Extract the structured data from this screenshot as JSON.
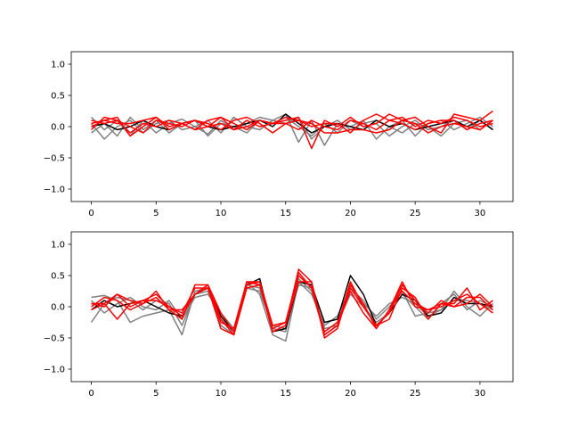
{
  "chart_data": [
    {
      "type": "line",
      "title": "",
      "xlabel": "",
      "ylabel": "",
      "xlim": [
        -1.55,
        32.55
      ],
      "ylim": [
        -1.2,
        1.2
      ],
      "xticks": [
        0,
        5,
        10,
        15,
        20,
        25,
        30
      ],
      "xtick_labels": [
        "0",
        "5",
        "10",
        "15",
        "20",
        "25",
        "30"
      ],
      "yticks": [
        -1.0,
        -0.5,
        0.0,
        0.5,
        1.0
      ],
      "ytick_labels": [
        "−1.0",
        "−0.5",
        "0.0",
        "0.5",
        "1.0"
      ],
      "x": [
        0,
        1,
        2,
        3,
        4,
        5,
        6,
        7,
        8,
        9,
        10,
        11,
        12,
        13,
        14,
        15,
        16,
        17,
        18,
        19,
        20,
        21,
        22,
        23,
        24,
        25,
        26,
        27,
        28,
        29,
        30,
        31
      ],
      "series": [
        {
          "color": "#808080",
          "values": [
            0.15,
            -0.05,
            0.1,
            -0.15,
            0.1,
            -0.1,
            0.05,
            0.12,
            0.0,
            -0.12,
            0.1,
            -0.05,
            0.05,
            0.15,
            0.1,
            0.2,
            -0.25,
            0.1,
            -0.3,
            0.05,
            0.0,
            0.1,
            -0.2,
            0.0,
            0.1,
            -0.15,
            0.05,
            0.1,
            -0.05,
            0.05,
            0.15,
            0.0
          ]
        },
        {
          "color": "#808080",
          "values": [
            -0.1,
            0.05,
            -0.15,
            0.15,
            -0.05,
            0.1,
            -0.1,
            0.05,
            0.1,
            -0.15,
            0.05,
            0.0,
            -0.1,
            0.1,
            0.05,
            0.15,
            0.0,
            -0.15,
            0.05,
            -0.1,
            0.1,
            0.0,
            0.05,
            -0.15,
            0.0,
            0.1,
            -0.05,
            0.0,
            0.1,
            -0.05,
            0.1,
            -0.05
          ]
        },
        {
          "color": "#808080",
          "values": [
            0.05,
            -0.2,
            0.0,
            0.1,
            -0.1,
            0.05,
            0.1,
            -0.05,
            0.0,
            0.1,
            -0.1,
            0.15,
            0.0,
            -0.05,
            0.1,
            0.05,
            0.15,
            -0.2,
            0.0,
            0.1,
            -0.05,
            0.05,
            0.1,
            0.0,
            -0.1,
            0.05,
            0.0,
            -0.15,
            0.05,
            0.1,
            -0.05,
            0.1
          ]
        },
        {
          "color": "#000000",
          "values": [
            0.0,
            0.05,
            -0.05,
            0.0,
            0.1,
            0.0,
            -0.05,
            0.05,
            0.1,
            0.0,
            -0.05,
            0.0,
            0.05,
            0.1,
            0.0,
            0.2,
            0.05,
            -0.1,
            0.0,
            0.05,
            0.0,
            -0.05,
            0.1,
            0.0,
            0.05,
            -0.05,
            0.0,
            0.05,
            0.1,
            0.0,
            0.1,
            -0.05
          ]
        },
        {
          "color": "#ff0000",
          "values": [
            0.05,
            0.1,
            0.15,
            -0.15,
            0.0,
            0.15,
            -0.05,
            0.05,
            0.1,
            0.0,
            0.15,
            0.05,
            -0.05,
            0.1,
            0.05,
            0.1,
            0.15,
            -0.35,
            0.1,
            0.0,
            0.15,
            0.0,
            0.05,
            0.2,
            0.1,
            0.15,
            0.0,
            -0.1,
            0.2,
            0.15,
            0.1,
            0.25
          ]
        },
        {
          "color": "#ff0000",
          "values": [
            -0.05,
            0.15,
            0.1,
            0.0,
            -0.1,
            0.1,
            0.05,
            0.0,
            0.1,
            0.05,
            -0.05,
            0.1,
            0.15,
            0.05,
            -0.1,
            0.05,
            -0.05,
            0.1,
            0.0,
            -0.05,
            0.1,
            0.05,
            -0.05,
            0.1,
            0.15,
            0.0,
            0.1,
            0.05,
            0.15,
            0.1,
            0.0,
            0.05
          ]
        },
        {
          "color": "#ff0000",
          "values": [
            0.1,
            0.05,
            0.1,
            -0.1,
            0.05,
            0.0,
            0.1,
            0.05,
            -0.05,
            0.0,
            0.05,
            -0.05,
            0.1,
            0.0,
            0.05,
            0.05,
            0.1,
            0.05,
            -0.1,
            -0.1,
            -0.05,
            -0.05,
            -0.1,
            -0.05,
            0.1,
            0.05,
            -0.1,
            0.0,
            0.05,
            0.0,
            -0.05,
            0.1
          ]
        },
        {
          "color": "#ff0000",
          "values": [
            0.0,
            0.1,
            0.05,
            0.05,
            0.1,
            0.15,
            0.0,
            0.05,
            -0.05,
            0.1,
            0.15,
            -0.05,
            0.0,
            0.1,
            0.05,
            0.15,
            0.1,
            0.0,
            0.05,
            0.05,
            -0.1,
            0.1,
            0.2,
            0.1,
            0.05,
            -0.05,
            0.05,
            0.1,
            0.1,
            -0.05,
            0.05,
            0.1
          ]
        }
      ]
    },
    {
      "type": "line",
      "title": "",
      "xlabel": "",
      "ylabel": "",
      "xlim": [
        -1.55,
        32.55
      ],
      "ylim": [
        -1.2,
        1.2
      ],
      "xticks": [
        0,
        5,
        10,
        15,
        20,
        25,
        30
      ],
      "xtick_labels": [
        "0",
        "5",
        "10",
        "15",
        "20",
        "25",
        "30"
      ],
      "yticks": [
        -1.0,
        -0.5,
        0.0,
        0.5,
        1.0
      ],
      "ytick_labels": [
        "−1.0",
        "−0.5",
        "0.0",
        "0.5",
        "1.0"
      ],
      "x": [
        0,
        1,
        2,
        3,
        4,
        5,
        6,
        7,
        8,
        9,
        10,
        11,
        12,
        13,
        14,
        15,
        16,
        17,
        18,
        19,
        20,
        21,
        22,
        23,
        24,
        25,
        26,
        27,
        28,
        29,
        30,
        31
      ],
      "series": [
        {
          "color": "#808080",
          "values": [
            0.15,
            0.18,
            0.1,
            -0.25,
            -0.15,
            -0.1,
            -0.05,
            -0.45,
            0.25,
            0.3,
            -0.3,
            -0.45,
            0.4,
            0.2,
            -0.45,
            -0.55,
            0.4,
            0.2,
            -0.3,
            -0.15,
            0.3,
            0.1,
            -0.2,
            0.0,
            0.25,
            -0.15,
            -0.1,
            -0.05,
            0.25,
            0.0,
            -0.15,
            0.05
          ]
        },
        {
          "color": "#808080",
          "values": [
            -0.25,
            0.05,
            0.15,
            0.1,
            -0.05,
            0.1,
            0.05,
            -0.3,
            0.2,
            0.25,
            -0.2,
            -0.4,
            0.35,
            0.3,
            -0.35,
            -0.4,
            0.45,
            0.25,
            -0.4,
            -0.25,
            0.2,
            0.0,
            -0.25,
            -0.1,
            0.2,
            0.0,
            -0.2,
            0.05,
            0.2,
            -0.05,
            0.1,
            0.0
          ]
        },
        {
          "color": "#808080",
          "values": [
            0.1,
            -0.1,
            0.05,
            0.15,
            0.0,
            -0.05,
            0.1,
            -0.2,
            0.15,
            0.2,
            -0.1,
            -0.35,
            0.3,
            0.25,
            -0.3,
            -0.35,
            0.35,
            0.3,
            -0.35,
            -0.3,
            0.35,
            0.05,
            -0.15,
            0.05,
            0.15,
            0.05,
            -0.15,
            -0.05,
            0.1,
            0.1,
            0.05,
            -0.05
          ]
        },
        {
          "color": "#000000",
          "values": [
            -0.05,
            0.1,
            0.0,
            0.05,
            0.1,
            0.0,
            -0.1,
            -0.15,
            0.2,
            0.3,
            -0.15,
            -0.4,
            0.35,
            0.45,
            -0.4,
            -0.35,
            0.4,
            0.35,
            -0.25,
            -0.2,
            0.5,
            0.2,
            -0.3,
            -0.1,
            0.2,
            0.1,
            -0.15,
            -0.1,
            0.15,
            0.05,
            0.05,
            0.0
          ]
        },
        {
          "color": "#ff0000",
          "values": [
            0.05,
            0.0,
            0.2,
            0.0,
            0.1,
            0.2,
            0.0,
            -0.1,
            0.3,
            0.3,
            -0.35,
            -0.45,
            0.3,
            0.35,
            -0.4,
            -0.3,
            0.6,
            0.4,
            -0.5,
            -0.35,
            0.35,
            0.05,
            -0.35,
            -0.05,
            0.4,
            0.0,
            -0.05,
            0.05,
            0.0,
            0.05,
            0.2,
            0.0
          ]
        },
        {
          "color": "#ff0000",
          "values": [
            0.0,
            0.15,
            0.1,
            -0.05,
            0.05,
            0.25,
            -0.05,
            -0.2,
            0.35,
            0.35,
            -0.1,
            -0.4,
            0.4,
            0.35,
            -0.35,
            -0.25,
            0.5,
            0.3,
            -0.45,
            -0.3,
            0.4,
            0.0,
            -0.3,
            -0.2,
            0.3,
            0.15,
            -0.2,
            0.05,
            0.05,
            0.3,
            -0.05,
            0.1
          ]
        },
        {
          "color": "#ff0000",
          "values": [
            0.05,
            0.05,
            0.2,
            0.1,
            0.05,
            0.15,
            -0.05,
            -0.05,
            0.2,
            0.35,
            -0.2,
            -0.45,
            0.35,
            0.4,
            -0.4,
            -0.3,
            0.4,
            0.4,
            -0.45,
            -0.3,
            0.25,
            -0.1,
            -0.35,
            -0.05,
            0.25,
            0.05,
            -0.05,
            0.0,
            0.1,
            0.2,
            0.05,
            -0.1
          ]
        },
        {
          "color": "#ff0000",
          "values": [
            -0.05,
            0.05,
            -0.2,
            0.05,
            0.1,
            0.1,
            0.0,
            -0.15,
            0.2,
            0.3,
            -0.25,
            -0.35,
            0.4,
            0.4,
            -0.3,
            -0.25,
            0.55,
            0.3,
            -0.4,
            -0.25,
            0.3,
            0.0,
            -0.3,
            -0.1,
            0.35,
            0.1,
            -0.1,
            0.1,
            0.0,
            0.15,
            0.15,
            -0.05
          ]
        }
      ]
    }
  ]
}
